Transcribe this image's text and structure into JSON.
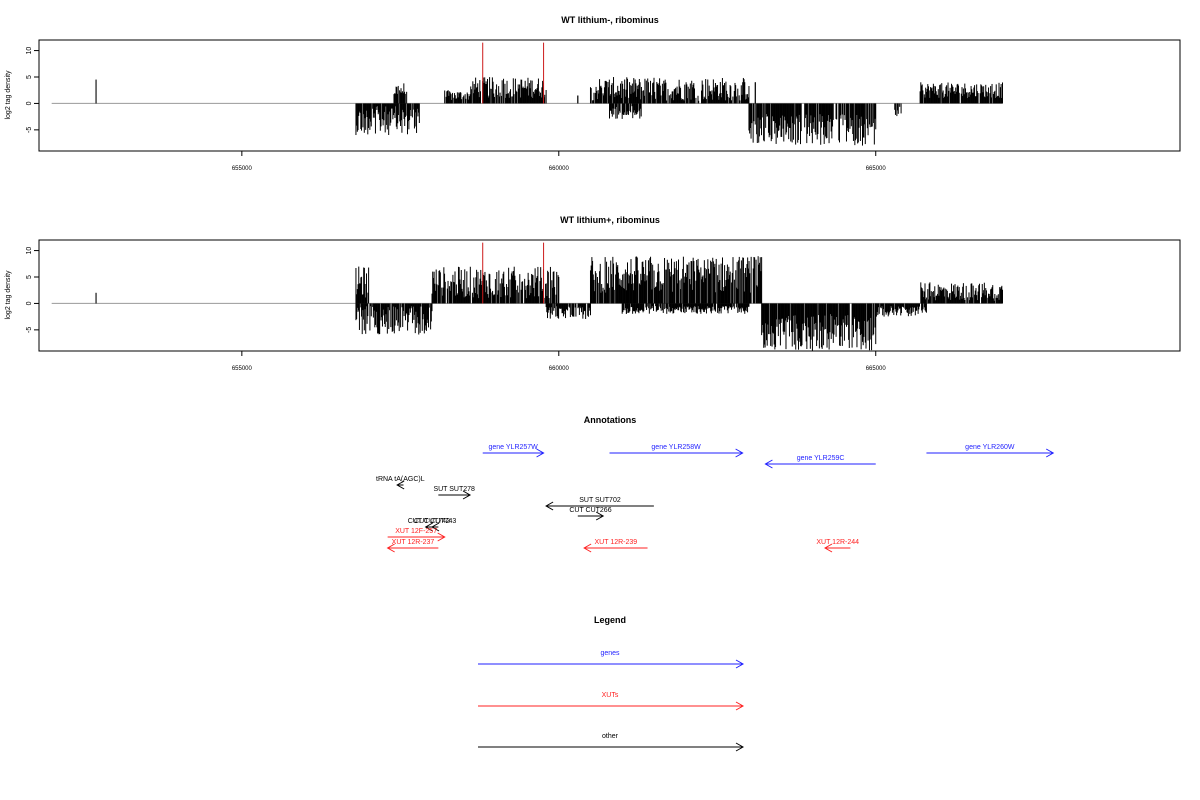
{
  "chart_data": [
    {
      "type": "bar",
      "title": "WT lithium-, ribominus",
      "ylabel": "log2 tag density",
      "xlabel": "",
      "xlim": [
        651800,
        669800
      ],
      "ylim": [
        -9,
        12
      ],
      "yticks": [
        -5,
        0,
        5,
        10
      ],
      "xticks": [
        655000,
        660000,
        665000
      ],
      "xtick_labels": [
        "655000",
        "660000",
        "665000"
      ],
      "baseline": {
        "from": 652000,
        "to": 667000,
        "value": 0
      },
      "highlight_lines": [
        658800,
        659760
      ],
      "segments": [
        {
          "from": 652700,
          "to": 652700,
          "sign": 1,
          "min": 4.5,
          "max": 4.5
        },
        {
          "from": 656800,
          "to": 657800,
          "sign": -1,
          "min": 0.5,
          "max": 6
        },
        {
          "from": 657400,
          "to": 657600,
          "sign": 1,
          "min": 1,
          "max": 4
        },
        {
          "from": 658200,
          "to": 658600,
          "sign": 1,
          "min": 0.5,
          "max": 2.5
        },
        {
          "from": 658600,
          "to": 659800,
          "sign": 1,
          "min": 1,
          "max": 5
        },
        {
          "from": 660300,
          "to": 660300,
          "sign": 1,
          "min": 1.5,
          "max": 1.5
        },
        {
          "from": 660500,
          "to": 663000,
          "sign": 1,
          "min": 0.5,
          "max": 5
        },
        {
          "from": 660800,
          "to": 661300,
          "sign": -1,
          "min": 0.5,
          "max": 3
        },
        {
          "from": 663100,
          "to": 663100,
          "sign": 1,
          "min": 4,
          "max": 4
        },
        {
          "from": 663000,
          "to": 665000,
          "sign": -1,
          "min": 2,
          "max": 8
        },
        {
          "from": 665300,
          "to": 665400,
          "sign": -1,
          "min": 0.5,
          "max": 2.5
        },
        {
          "from": 665700,
          "to": 667000,
          "sign": 1,
          "min": 1,
          "max": 4
        }
      ]
    },
    {
      "type": "bar",
      "title": "WT lithium+, ribominus",
      "ylabel": "log2 tag density",
      "xlabel": "",
      "xlim": [
        651800,
        669800
      ],
      "ylim": [
        -9,
        12
      ],
      "yticks": [
        -5,
        0,
        5,
        10
      ],
      "xticks": [
        655000,
        660000,
        665000
      ],
      "xtick_labels": [
        "655000",
        "660000",
        "665000"
      ],
      "baseline": {
        "from": 652000,
        "to": 667000,
        "value": 0
      },
      "highlight_lines": [
        658800,
        659760
      ],
      "segments": [
        {
          "from": 652700,
          "to": 652700,
          "sign": 1,
          "min": 2,
          "max": 2
        },
        {
          "from": 656800,
          "to": 657000,
          "sign": 1,
          "min": 1,
          "max": 7
        },
        {
          "from": 656800,
          "to": 658000,
          "sign": -1,
          "min": 0.5,
          "max": 6
        },
        {
          "from": 658000,
          "to": 660000,
          "sign": 1,
          "min": 1,
          "max": 7
        },
        {
          "from": 659800,
          "to": 660500,
          "sign": -1,
          "min": 0.5,
          "max": 3
        },
        {
          "from": 660500,
          "to": 663200,
          "sign": 1,
          "min": 2,
          "max": 9
        },
        {
          "from": 661000,
          "to": 663000,
          "sign": -1,
          "min": 0.5,
          "max": 2
        },
        {
          "from": 663200,
          "to": 665000,
          "sign": -1,
          "min": 2,
          "max": 9
        },
        {
          "from": 665000,
          "to": 665800,
          "sign": -1,
          "min": 0.5,
          "max": 2.5
        },
        {
          "from": 665700,
          "to": 667000,
          "sign": 1,
          "min": 0.5,
          "max": 4
        }
      ]
    }
  ],
  "annotations": {
    "title": "Annotations",
    "features": [
      {
        "label": "gene YLR257W",
        "start": 658800,
        "end": 659760,
        "strand": "+",
        "kind": "gene",
        "row": 0
      },
      {
        "label": "gene YLR258W",
        "start": 660800,
        "end": 662900,
        "strand": "+",
        "kind": "gene",
        "row": 0
      },
      {
        "label": "gene YLR260W",
        "start": 665800,
        "end": 667800,
        "strand": "+",
        "kind": "gene",
        "row": 0
      },
      {
        "label": "gene YLR259C",
        "start": 663260,
        "end": 665000,
        "strand": "-",
        "kind": "gene",
        "row": 1
      },
      {
        "label": "tRNA tA(AGC)L",
        "start": 657450,
        "end": 657550,
        "strand": "-",
        "kind": "other",
        "row": 3
      },
      {
        "label": "SUT SUT278",
        "start": 658100,
        "end": 658600,
        "strand": "+",
        "kind": "other",
        "row": 4
      },
      {
        "label": "SUT SUT702",
        "start": 659800,
        "end": 661500,
        "strand": "-",
        "kind": "other",
        "row": 5
      },
      {
        "label": "CUT CUT266",
        "start": 660300,
        "end": 660700,
        "strand": "+",
        "kind": "other",
        "row": 6
      },
      {
        "label": "CUT CUT743",
        "start": 658000,
        "end": 658100,
        "strand": "-",
        "kind": "other",
        "row": 7
      },
      {
        "label": "CUT CUT742",
        "start": 657900,
        "end": 658000,
        "strand": "-",
        "kind": "other",
        "row": 7
      },
      {
        "label": "XUT 12F-257",
        "start": 657300,
        "end": 658200,
        "strand": "+",
        "kind": "xut",
        "row": 8
      },
      {
        "label": "XUT 12R-237",
        "start": 657300,
        "end": 658100,
        "strand": "-",
        "kind": "xut",
        "row": 9
      },
      {
        "label": "XUT 12R-239",
        "start": 660400,
        "end": 661400,
        "strand": "-",
        "kind": "xut",
        "row": 9
      },
      {
        "label": "XUT 12R-244",
        "start": 664200,
        "end": 664600,
        "strand": "-",
        "kind": "xut",
        "row": 9
      }
    ]
  },
  "legend": {
    "title": "Legend",
    "items": [
      {
        "label": "genes",
        "kind": "gene"
      },
      {
        "label": "XUTs",
        "kind": "xut"
      },
      {
        "label": "other",
        "kind": "other"
      }
    ]
  },
  "colors": {
    "gene": "#1f1fff",
    "xut": "#ff2020",
    "other": "#000000",
    "highlight": "#cc1a1a",
    "baseline": "#9a9a9a",
    "bars": "#000000"
  }
}
